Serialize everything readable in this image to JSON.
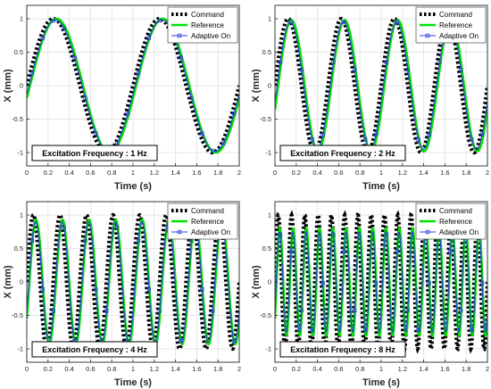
{
  "chart_data": [
    {
      "type": "line",
      "ylabel": "X (mm)",
      "xlabel": "Time (s)",
      "xlim": [
        0,
        2
      ],
      "ylim": [
        -1.2,
        1.2
      ],
      "xticks": [
        "0",
        "0.2",
        "0.4",
        "0.6",
        "0.8",
        "1",
        "1.2",
        "1.4",
        "1.6",
        "1.8",
        "2"
      ],
      "yticks": [
        "1",
        "0.5",
        "0",
        "-0.5",
        "-1"
      ],
      "grid": true,
      "legend_position": "top-right",
      "annotation": "Excitation Frequency : 1 Hz",
      "frequency_hz": 1,
      "series": [
        {
          "name": "Command",
          "color": "#000000",
          "style": "dotted",
          "amplitude": 1.0,
          "delay_s": 0.0
        },
        {
          "name": "Reference",
          "color": "#00e000",
          "style": "solid",
          "amplitude": 1.0,
          "delay_s": 0.03
        },
        {
          "name": "Adaptive On",
          "color": "#2a3fd6",
          "style": "solid-square-markers",
          "amplitude": 0.98,
          "delay_s": 0.02
        }
      ]
    },
    {
      "type": "line",
      "ylabel": "X (mm)",
      "xlabel": "Time (s)",
      "xlim": [
        0,
        2
      ],
      "ylim": [
        -1.2,
        1.2
      ],
      "xticks": [
        "0",
        "0.2",
        "0.4",
        "0.6",
        "0.8",
        "1",
        "1.2",
        "1.4",
        "1.6",
        "1.8",
        "2"
      ],
      "yticks": [
        "1",
        "0.5",
        "0",
        "-0.5",
        "-1"
      ],
      "grid": true,
      "legend_position": "top-right",
      "annotation": "Excitation Frequency : 2 Hz",
      "frequency_hz": 2,
      "series": [
        {
          "name": "Command",
          "color": "#000000",
          "style": "dotted",
          "amplitude": 1.0,
          "delay_s": 0.0
        },
        {
          "name": "Reference",
          "color": "#00e000",
          "style": "solid",
          "amplitude": 0.98,
          "delay_s": 0.03
        },
        {
          "name": "Adaptive On",
          "color": "#2a3fd6",
          "style": "solid-square-markers",
          "amplitude": 0.95,
          "delay_s": 0.02
        }
      ]
    },
    {
      "type": "line",
      "ylabel": "X (mm)",
      "xlabel": "Time (s)",
      "xlim": [
        0,
        2
      ],
      "ylim": [
        -1.2,
        1.2
      ],
      "xticks": [
        "0",
        "0.2",
        "0.4",
        "0.6",
        "0.8",
        "1",
        "1.2",
        "1.4",
        "1.6",
        "1.8",
        "2"
      ],
      "yticks": [
        "1",
        "0.5",
        "0",
        "-0.5",
        "-1"
      ],
      "grid": true,
      "legend_position": "top-right",
      "annotation": "Excitation Frequency : 4 Hz",
      "frequency_hz": 4,
      "series": [
        {
          "name": "Command",
          "color": "#000000",
          "style": "dotted",
          "amplitude": 1.0,
          "delay_s": 0.0
        },
        {
          "name": "Reference",
          "color": "#00e000",
          "style": "solid",
          "amplitude": 0.93,
          "delay_s": 0.025
        },
        {
          "name": "Adaptive On",
          "color": "#2a3fd6",
          "style": "solid-square-markers",
          "amplitude": 0.9,
          "delay_s": 0.02
        }
      ]
    },
    {
      "type": "line",
      "ylabel": "X (mm)",
      "xlabel": "Time (s)",
      "xlim": [
        0,
        2
      ],
      "ylim": [
        -1.2,
        1.2
      ],
      "xticks": [
        "0",
        "0.2",
        "0.4",
        "0.6",
        "0.8",
        "1",
        "1.2",
        "1.4",
        "1.6",
        "1.8",
        "2"
      ],
      "yticks": [
        "1",
        "0.5",
        "0",
        "-0.5",
        "-1"
      ],
      "grid": true,
      "legend_position": "top-right",
      "annotation": "Excitation Frequency : 8 Hz",
      "frequency_hz": 8,
      "series": [
        {
          "name": "Command",
          "color": "#000000",
          "style": "dotted",
          "amplitude": 1.0,
          "delay_s": 0.0
        },
        {
          "name": "Reference",
          "color": "#00e000",
          "style": "solid",
          "amplitude": 0.8,
          "delay_s": 0.015
        },
        {
          "name": "Adaptive On",
          "color": "#2a3fd6",
          "style": "solid-square-markers",
          "amplitude": 0.75,
          "delay_s": 0.012
        }
      ]
    }
  ]
}
